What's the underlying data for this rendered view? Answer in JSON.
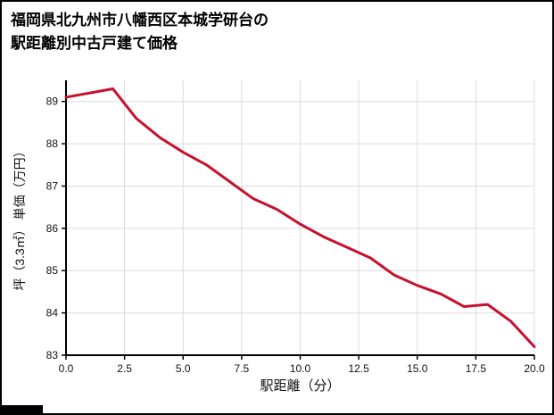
{
  "figure": {
    "title_lines": [
      "福岡県北九州市八幡西区本城学研台の",
      "駅距離別中古戸建て価格"
    ]
  },
  "chart_data": {
    "type": "line",
    "title": "福岡県北九州市八幡西区本城学研台の駅距離別中古戸建て価格",
    "xlabel": "駅距離（分）",
    "ylabel": "坪（3.3㎡） 単価（万円）",
    "x": [
      0,
      1,
      2,
      3,
      4,
      5,
      6,
      7,
      8,
      9,
      10,
      11,
      12,
      13,
      14,
      15,
      16,
      17,
      18,
      19,
      20
    ],
    "y": [
      89.1,
      89.2,
      89.3,
      88.6,
      88.15,
      87.8,
      87.5,
      87.1,
      86.7,
      86.45,
      86.1,
      85.8,
      85.55,
      85.3,
      84.9,
      84.65,
      84.45,
      84.15,
      84.2,
      83.8,
      83.2
    ],
    "xlim": [
      0,
      20
    ],
    "ylim": [
      83,
      89.5
    ],
    "xticks": [
      "0.0",
      "2.5",
      "5.0",
      "7.5",
      "10.0",
      "12.5",
      "15.0",
      "17.5",
      "20.0"
    ],
    "yticks": [
      "83",
      "84",
      "85",
      "86",
      "87",
      "88",
      "89"
    ],
    "grid": true,
    "legend": "none",
    "line_color": "#c8102e",
    "grid_color": "#dcdcdc",
    "axis_color": "#000000",
    "tick_label_color": "#111111"
  }
}
